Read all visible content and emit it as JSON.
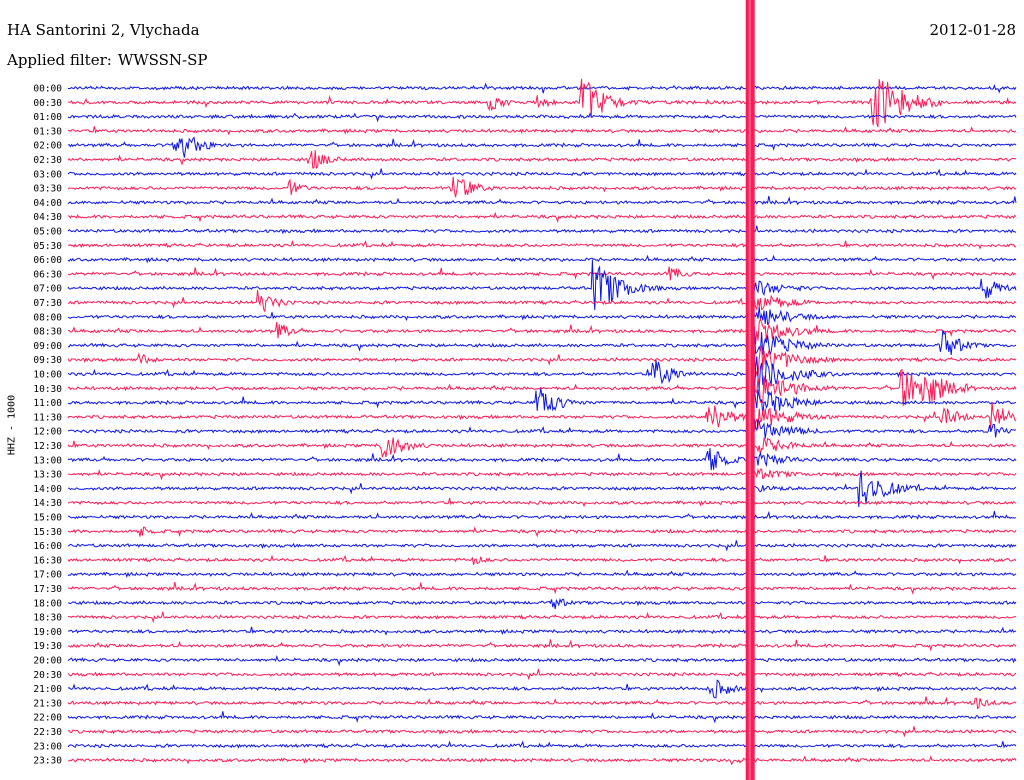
{
  "header": {
    "station": "HA Santorini 2, Vlychada",
    "filter_label": "Applied filter:",
    "filter_value": "WWSSN-SP",
    "date": "2012-01-28"
  },
  "chart_data": {
    "type": "line",
    "subtype": "helicorder",
    "title": "HA Santorini 2, Vlychada",
    "date": "2012-01-28",
    "filter": "WWSSN-SP",
    "ylabel": "HHZ - 1000",
    "row_interval_minutes": 30,
    "row_labels": [
      "00:00",
      "00:30",
      "01:00",
      "01:30",
      "02:00",
      "02:30",
      "03:00",
      "03:30",
      "04:00",
      "04:30",
      "05:00",
      "05:30",
      "06:00",
      "06:30",
      "07:00",
      "07:30",
      "08:00",
      "08:30",
      "09:00",
      "09:30",
      "10:00",
      "10:30",
      "11:00",
      "11:30",
      "12:00",
      "12:30",
      "13:00",
      "13:30",
      "14:00",
      "14:30",
      "15:00",
      "15:30",
      "16:00",
      "16:30",
      "17:00",
      "17:30",
      "18:00",
      "18:30",
      "19:00",
      "19:30",
      "20:00",
      "20:30",
      "21:00",
      "21:30",
      "22:00",
      "22:30",
      "23:00",
      "23:30"
    ],
    "colors": {
      "even_rows": "#0a14e6",
      "odd_rows": "#ff1a55"
    },
    "x_range_minutes": [
      0,
      30
    ],
    "events": [
      {
        "row": 1,
        "minute": 13.3,
        "amplitude": 10
      },
      {
        "row": 1,
        "minute": 14.8,
        "amplitude": 8
      },
      {
        "row": 1,
        "minute": 16.2,
        "amplitude": 28
      },
      {
        "row": 1,
        "minute": 25.4,
        "amplitude": 38
      },
      {
        "row": 4,
        "minute": 3.3,
        "amplitude": 22
      },
      {
        "row": 5,
        "minute": 7.6,
        "amplitude": 14
      },
      {
        "row": 7,
        "minute": 7.0,
        "amplitude": 9
      },
      {
        "row": 7,
        "minute": 12.1,
        "amplitude": 18
      },
      {
        "row": 14,
        "minute": 16.6,
        "amplitude": 30
      },
      {
        "row": 13,
        "minute": 19.0,
        "amplitude": 9
      },
      {
        "row": 14,
        "minute": 28.8,
        "amplitude": 16
      },
      {
        "row": 15,
        "minute": 6.0,
        "amplitude": 14
      },
      {
        "row": 17,
        "minute": 6.6,
        "amplitude": 10
      },
      {
        "row": 18,
        "minute": 27.6,
        "amplitude": 17
      },
      {
        "row": 19,
        "minute": 2.2,
        "amplitude": 8
      },
      {
        "row": 20,
        "minute": 18.5,
        "amplitude": 18
      },
      {
        "row": 21,
        "minute": 26.3,
        "amplitude": 26
      },
      {
        "row": 21,
        "minute": 27.0,
        "amplitude": 24
      },
      {
        "row": 22,
        "minute": 14.8,
        "amplitude": 20
      },
      {
        "row": 23,
        "minute": 20.2,
        "amplitude": 20
      },
      {
        "row": 23,
        "minute": 27.6,
        "amplitude": 14
      },
      {
        "row": 23,
        "minute": 29.2,
        "amplitude": 16
      },
      {
        "row": 24,
        "minute": 29.0,
        "amplitude": 12
      },
      {
        "row": 25,
        "minute": 9.9,
        "amplitude": 20
      },
      {
        "row": 26,
        "minute": 20.2,
        "amplitude": 16
      },
      {
        "row": 28,
        "minute": 25.0,
        "amplitude": 26
      },
      {
        "row": 31,
        "minute": 2.3,
        "amplitude": 6
      },
      {
        "row": 33,
        "minute": 12.8,
        "amplitude": 6
      },
      {
        "row": 36,
        "minute": 15.3,
        "amplitude": 8
      },
      {
        "row": 42,
        "minute": 20.3,
        "amplitude": 14
      },
      {
        "row": 43,
        "minute": 28.7,
        "amplitude": 8
      },
      {
        "row": 47,
        "minute": 21.0,
        "amplitude": 5
      }
    ],
    "major_event": {
      "row_start": 1,
      "row_end": 47,
      "minute": 21.55,
      "saturated": true,
      "peak_row": 20,
      "coda_end_minute": 24.5
    }
  }
}
